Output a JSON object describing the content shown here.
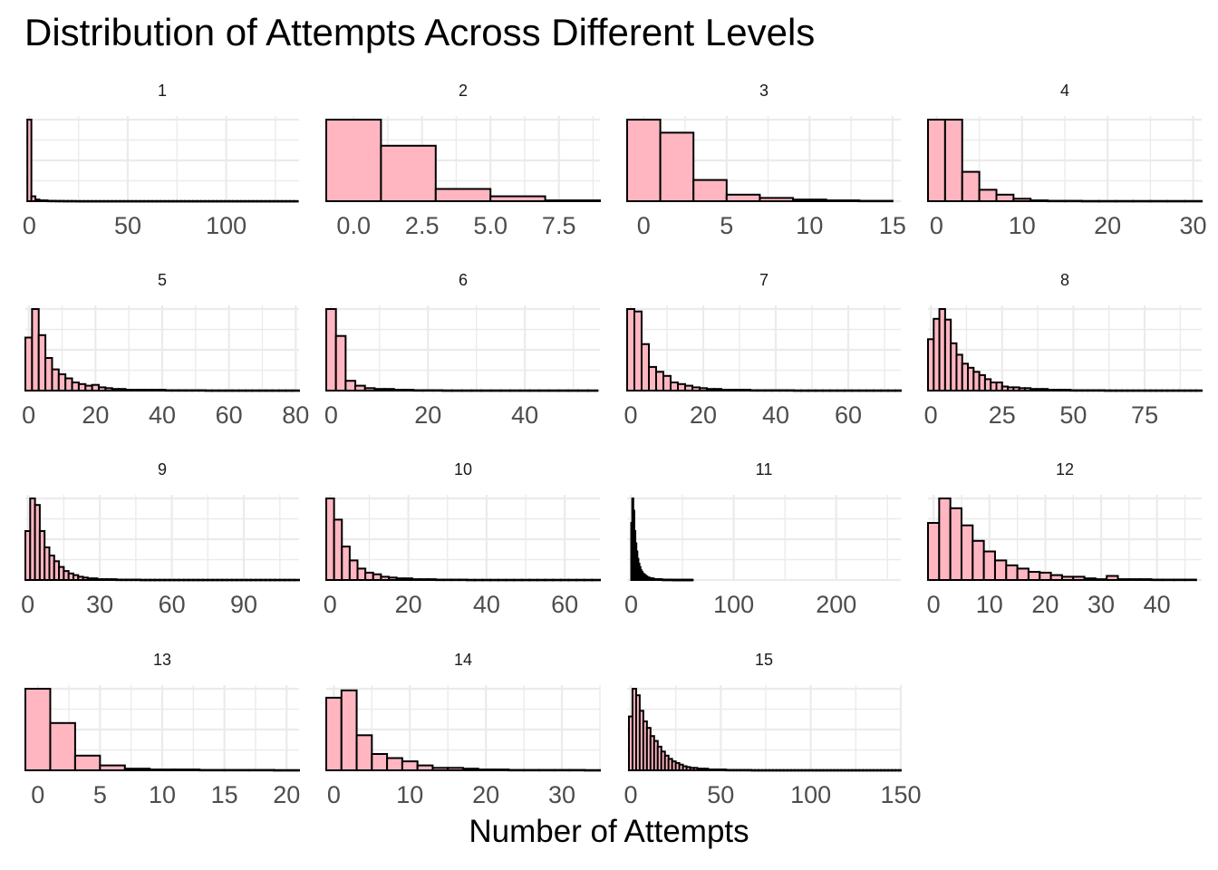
{
  "chart_data": {
    "type": "bar",
    "title": "Distribution of Attempts Across Different Levels",
    "xlabel": "Number of Attempts",
    "ylabel": "",
    "fill_color": "#FFB6C1",
    "outline_color": "#000000",
    "grid": true,
    "panels": [
      {
        "label": "1",
        "xlim": [
          -2,
          137
        ],
        "ticks": [
          0,
          50,
          100
        ],
        "tick_labels": [
          "0",
          "50",
          "100"
        ],
        "bin_width": 2.05,
        "bins_start": -1.0,
        "values": [
          100,
          6,
          2,
          1,
          1,
          0.5,
          0.5,
          0.4,
          0.4,
          0.3,
          0.3,
          0.3,
          0.2,
          0.2,
          0.2,
          0.2,
          0.2,
          0.2,
          0.2,
          0.2,
          0.2,
          0.2,
          0.2,
          0.2,
          0.2,
          0.2,
          0.2,
          0.2,
          0.2,
          0.2,
          0.2,
          0.2,
          0.2,
          0.2,
          0.2,
          0.2,
          0.2,
          0.2,
          0.2,
          0.2,
          0.2,
          0.2,
          0.2,
          0.2,
          0.2,
          0.2,
          0.2,
          0.2,
          0.2,
          0.2,
          0.2,
          0.2,
          0.2,
          0.2,
          0.2,
          0.2,
          0.2,
          0.2,
          0.2,
          0.2,
          0.2,
          0.2,
          0.2,
          0.2,
          0.2,
          0.2,
          0.2
        ]
      },
      {
        "label": "2",
        "xlim": [
          -1,
          9
        ],
        "ticks": [
          0,
          2.5,
          5,
          7.5
        ],
        "tick_labels": [
          "0.0",
          "2.5",
          "5.0",
          "7.5"
        ],
        "bin_width": 2.0,
        "bins_start": -1.0,
        "values": [
          100,
          68,
          15,
          6,
          1
        ]
      },
      {
        "label": "3",
        "xlim": [
          -1,
          15.5
        ],
        "ticks": [
          0,
          5,
          10,
          15
        ],
        "tick_labels": [
          "0",
          "5",
          "10",
          "15"
        ],
        "bin_width": 2.0,
        "bins_start": -1.0,
        "values": [
          100,
          84,
          26,
          8,
          4,
          2,
          1,
          0.5
        ]
      },
      {
        "label": "4",
        "xlim": [
          -1,
          31
        ],
        "ticks": [
          0,
          10,
          20,
          30
        ],
        "tick_labels": [
          "0",
          "10",
          "20",
          "30"
        ],
        "bin_width": 2.0,
        "bins_start": -1.0,
        "values": [
          100,
          100,
          36,
          14,
          8,
          3,
          1,
          0.5,
          0.5,
          0.3,
          0.3,
          0.3,
          0.3,
          0.3,
          0.3,
          0.3
        ]
      },
      {
        "label": "5",
        "xlim": [
          -1,
          81
        ],
        "ticks": [
          0,
          20,
          40,
          60,
          80
        ],
        "tick_labels": [
          "0",
          "20",
          "40",
          "60",
          "80"
        ],
        "bin_width": 2.0,
        "bins_start": -1.0,
        "values": [
          65,
          100,
          68,
          40,
          26,
          20,
          15,
          10,
          8,
          6,
          7,
          4,
          3,
          2,
          2,
          1,
          1,
          1,
          1,
          1,
          1,
          0.5,
          0.5,
          0.5,
          0.5,
          0.5,
          0.5,
          0.3,
          0.3,
          0.3,
          0.3,
          0.3,
          0.3,
          0.3,
          0.3,
          0.3,
          0.3,
          0.3,
          0.3,
          0.3,
          0.3
        ]
      },
      {
        "label": "6",
        "xlim": [
          -1,
          55.5
        ],
        "ticks": [
          0,
          20,
          40
        ],
        "tick_labels": [
          "0",
          "20",
          "40"
        ],
        "bin_width": 2.0,
        "bins_start": -1.0,
        "values": [
          100,
          67,
          12,
          6,
          3,
          2,
          2,
          1,
          1,
          0.5,
          0.5,
          0.5,
          0.3,
          0.3,
          0.3,
          0.3,
          0.3,
          0.3,
          0.3,
          0.3,
          0.3,
          0.3,
          0.3,
          0.3,
          0.3,
          0.3,
          0.3,
          0.3
        ]
      },
      {
        "label": "7",
        "xlim": [
          -1,
          74.5
        ],
        "ticks": [
          0,
          20,
          40,
          60
        ],
        "tick_labels": [
          "0",
          "20",
          "40",
          "60"
        ],
        "bin_width": 2.0,
        "bins_start": -1.0,
        "values": [
          100,
          97,
          57,
          29,
          23,
          18,
          10,
          8,
          6,
          4,
          3,
          2,
          2,
          1,
          1,
          1,
          1,
          0.5,
          0.5,
          0.5,
          0.5,
          0.5,
          0.5,
          0.3,
          0.3,
          0.3,
          0.3,
          0.3,
          0.3,
          0.3,
          0.3,
          0.3,
          0.3,
          0.3,
          0.3,
          0.3,
          0.3,
          0.3
        ]
      },
      {
        "label": "8",
        "xlim": [
          -1,
          95
        ],
        "ticks": [
          0,
          25,
          50,
          75
        ],
        "tick_labels": [
          "0",
          "25",
          "50",
          "75"
        ],
        "bin_width": 2.0,
        "bins_start": -1.0,
        "values": [
          63,
          88,
          100,
          87,
          58,
          44,
          33,
          28,
          23,
          19,
          14,
          10,
          10,
          5,
          4,
          4,
          3,
          3,
          2,
          2,
          2,
          1,
          1,
          1,
          1,
          0.5,
          0.5,
          0.5,
          0.5,
          0.5,
          0.5,
          0.3,
          0.3,
          0.3,
          0.3,
          0.3,
          0.3,
          0.3,
          0.3,
          0.3,
          0.3,
          0.3,
          0.3,
          0.3,
          0.3,
          0.3,
          0.3,
          0.3
        ]
      },
      {
        "label": "9",
        "xlim": [
          -1,
          113
        ],
        "ticks": [
          0,
          30,
          60,
          90
        ],
        "tick_labels": [
          "0",
          "30",
          "60",
          "90"
        ],
        "bin_width": 2.0,
        "bins_start": -1.0,
        "values": [
          60,
          100,
          92,
          60,
          40,
          30,
          23,
          16,
          11,
          8,
          6,
          4,
          3,
          2,
          2,
          1,
          1,
          1,
          1,
          0.5,
          0.5,
          0.5,
          0.5,
          0.5,
          0.3,
          0.3,
          0.3,
          0.3,
          0.3,
          0.3,
          0.3,
          0.3,
          0.3,
          0.3,
          0.3,
          0.3,
          0.3,
          0.3,
          0.3,
          0.3,
          0.3,
          0.3,
          0.3,
          0.3,
          0.3,
          0.3,
          0.3,
          0.3,
          0.3,
          0.3,
          0.3,
          0.3,
          0.3,
          0.3,
          0.3,
          0.3,
          0.3
        ]
      },
      {
        "label": "10",
        "xlim": [
          -1,
          69
        ],
        "ticks": [
          0,
          20,
          40,
          60
        ],
        "tick_labels": [
          "0",
          "20",
          "40",
          "60"
        ],
        "bin_width": 2.0,
        "bins_start": -1.0,
        "values": [
          100,
          74,
          41,
          24,
          14,
          9,
          7,
          4,
          3,
          2,
          2,
          1,
          1,
          1,
          0.5,
          0.5,
          0.5,
          0.5,
          0.3,
          0.3,
          0.3,
          0.3,
          0.3,
          0.3,
          0.3,
          0.3,
          0.3,
          0.3,
          0.3,
          0.3,
          0.3,
          0.3,
          0.3,
          0.3,
          0.3
        ]
      },
      {
        "label": "11",
        "xlim": [
          -4,
          263
        ],
        "ticks": [
          0,
          100,
          200
        ],
        "tick_labels": [
          "0",
          "100",
          "200"
        ],
        "bin_width": 1.0,
        "bins_start": 0.0,
        "values": [
          70,
          100,
          85,
          60,
          45,
          35,
          26,
          20,
          16,
          12,
          10,
          8,
          7,
          6,
          5,
          4,
          3,
          3,
          2,
          2,
          2,
          2,
          1,
          1,
          1,
          1,
          1,
          1,
          1,
          1,
          0.5,
          0.5,
          0.5,
          0.5,
          0.5,
          0.5,
          0.5,
          0.5,
          0.5,
          0.5,
          0.3,
          0.3,
          0.3,
          0.3,
          0.3,
          0.3,
          0.3,
          0.3,
          0.3,
          0.3,
          0.3,
          0.3,
          0.3,
          0.3,
          0.3,
          0.3,
          0.3,
          0.3,
          0.3,
          0.3
        ]
      },
      {
        "label": "12",
        "xlim": [
          -1,
          48
        ],
        "ticks": [
          0,
          10,
          20,
          30,
          40
        ],
        "tick_labels": [
          "0",
          "10",
          "20",
          "30",
          "40"
        ],
        "bin_width": 2.0,
        "bins_start": -1.0,
        "values": [
          70,
          100,
          88,
          67,
          48,
          35,
          24,
          18,
          14,
          10,
          9,
          6,
          4,
          4,
          2,
          1,
          5,
          1,
          1,
          1,
          0.5,
          0.5,
          0.5,
          0.5
        ]
      },
      {
        "label": "13",
        "xlim": [
          -1,
          21
        ],
        "ticks": [
          0,
          5,
          10,
          15,
          20
        ],
        "tick_labels": [
          "0",
          "5",
          "10",
          "15",
          "20"
        ],
        "bin_width": 2.0,
        "bins_start": -1.0,
        "values": [
          100,
          58,
          18,
          6,
          2,
          1,
          1,
          0.5,
          0.5,
          0.5,
          0.3
        ]
      },
      {
        "label": "14",
        "xlim": [
          -1,
          35
        ],
        "ticks": [
          0,
          10,
          20,
          30
        ],
        "tick_labels": [
          "0",
          "10",
          "20",
          "30"
        ],
        "bin_width": 2.0,
        "bins_start": -1.0,
        "values": [
          89,
          98,
          43,
          20,
          15,
          11,
          6,
          3,
          3,
          2,
          1,
          1,
          0.5,
          0.5,
          0.5,
          0.5,
          0.5,
          0.3
        ]
      },
      {
        "label": "15",
        "xlim": [
          -2,
          150
        ],
        "ticks": [
          0,
          50,
          100,
          150
        ],
        "tick_labels": [
          "0",
          "50",
          "100",
          "150"
        ],
        "bin_width": 2.0,
        "bins_start": -1.0,
        "values": [
          66,
          100,
          92,
          73,
          60,
          52,
          42,
          36,
          29,
          23,
          18,
          14,
          11,
          9,
          7,
          5,
          4,
          3,
          3,
          2,
          2,
          2,
          1,
          1,
          1,
          1,
          1,
          0.5,
          0.5,
          0.5,
          0.5,
          0.5,
          0.5,
          0.5,
          0.3,
          0.3,
          0.3,
          0.3,
          0.3,
          0.3,
          0.3,
          0.3,
          0.3,
          0.3,
          0.3,
          0.3,
          0.3,
          0.3,
          0.3,
          0.3,
          0.3,
          0.3,
          0.3,
          0.3,
          0.3,
          0.3,
          0.3,
          0.3,
          0.3,
          0.3,
          0.3,
          0.3,
          0.3,
          0.3,
          0.3,
          0.3,
          0.3,
          0.3,
          0.3,
          0.3,
          0.3,
          0.3,
          0.3,
          0.3,
          0.3,
          0.3
        ]
      }
    ]
  }
}
